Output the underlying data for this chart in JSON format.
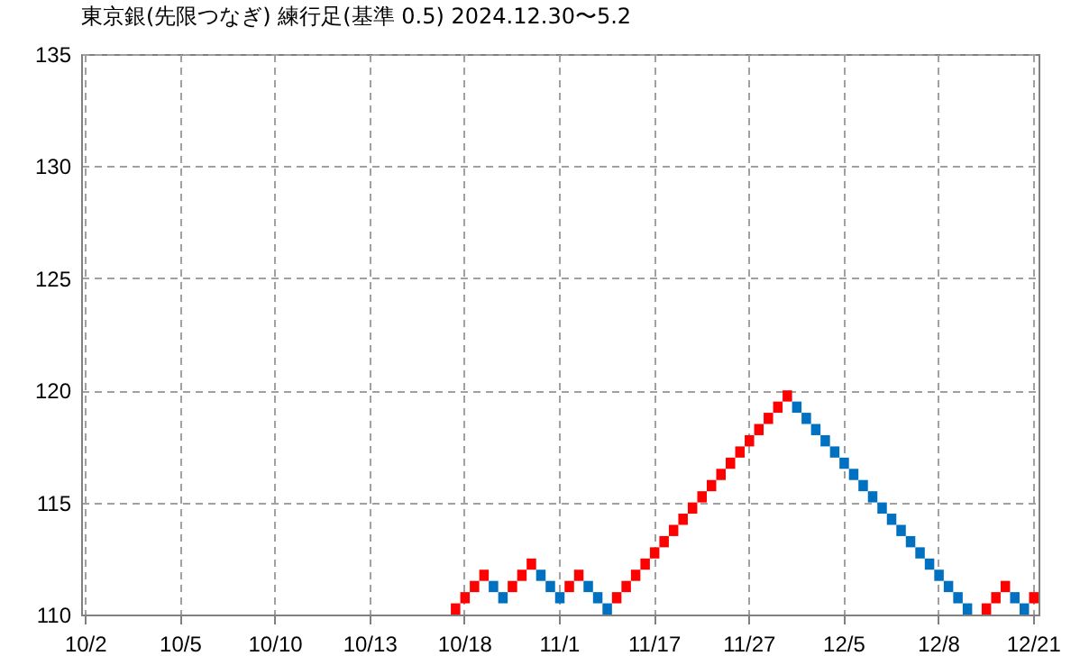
{
  "chart_data": {
    "type": "bar",
    "title": "東京銀(先限つなぎ)  練行足(基準 0.5)  2024.12.30〜5.2",
    "categories": [
      "10/2",
      null,
      null,
      null,
      null,
      null,
      null,
      null,
      null,
      null,
      "10/5",
      null,
      null,
      null,
      null,
      null,
      null,
      null,
      null,
      null,
      "10/10",
      null,
      null,
      null,
      null,
      null,
      null,
      null,
      null,
      null,
      "10/13",
      null,
      null,
      null,
      null,
      null,
      null,
      null,
      null,
      null,
      "10/18",
      null,
      null,
      null,
      null,
      null,
      null,
      null,
      null,
      null,
      "11/1",
      null,
      null,
      null,
      null,
      null,
      null,
      null,
      null,
      null,
      "11/17",
      null,
      null,
      null,
      null,
      null,
      null,
      null,
      null,
      null,
      "11/27",
      null,
      null,
      null,
      null,
      null,
      null,
      null,
      null,
      null,
      "12/5",
      null,
      null,
      null,
      null,
      null,
      null,
      null,
      null,
      null,
      "12/8",
      null,
      null,
      null,
      null,
      null,
      null,
      null,
      null,
      null,
      "12/21"
    ],
    "series": [
      {
        "color": "#ff0000",
        "base": [
          null,
          null,
          null,
          null,
          null,
          null,
          null,
          null,
          null,
          null,
          null,
          null,
          null,
          null,
          null,
          null,
          null,
          null,
          null,
          null,
          null,
          null,
          null,
          null,
          null,
          null,
          null,
          null,
          null,
          null,
          null,
          null,
          null,
          null,
          null,
          null,
          null,
          null,
          null,
          110,
          110.5,
          111,
          111.5,
          null,
          null,
          111,
          111.5,
          112,
          null,
          null,
          null,
          111,
          111.5,
          null,
          null,
          null,
          110.5,
          111,
          111.5,
          112,
          112.5,
          113,
          113.5,
          114,
          114.5,
          115,
          115.5,
          116,
          116.5,
          117,
          117.5,
          118,
          118.5,
          119,
          119.5,
          null,
          null,
          null,
          null,
          null,
          null,
          null,
          null,
          null,
          null,
          null,
          null,
          null,
          null,
          null,
          null,
          null,
          null,
          null,
          null,
          110,
          110.5,
          111,
          null,
          null,
          110.5
        ],
        "values": [
          null,
          null,
          null,
          null,
          null,
          null,
          null,
          null,
          null,
          null,
          null,
          null,
          null,
          null,
          null,
          null,
          null,
          null,
          null,
          null,
          null,
          null,
          null,
          null,
          null,
          null,
          null,
          null,
          null,
          null,
          null,
          null,
          null,
          null,
          null,
          null,
          null,
          null,
          null,
          0.5,
          0.5,
          0.5,
          0.5,
          null,
          null,
          0.5,
          0.5,
          0.5,
          null,
          null,
          null,
          0.5,
          0.5,
          null,
          null,
          null,
          0.5,
          0.5,
          0.5,
          0.5,
          0.5,
          0.5,
          0.5,
          0.5,
          0.5,
          0.5,
          0.5,
          0.5,
          0.5,
          0.5,
          0.5,
          0.5,
          0.5,
          0.5,
          0.5,
          null,
          null,
          null,
          null,
          null,
          null,
          null,
          null,
          null,
          null,
          null,
          null,
          null,
          null,
          null,
          null,
          null,
          null,
          null,
          null,
          0.5,
          0.5,
          0.5,
          null,
          null,
          0.5
        ]
      },
      {
        "color": "#0070c0",
        "base": [
          null,
          null,
          null,
          null,
          null,
          null,
          null,
          null,
          null,
          null,
          null,
          null,
          null,
          null,
          null,
          null,
          null,
          null,
          null,
          null,
          null,
          null,
          null,
          null,
          null,
          null,
          null,
          null,
          null,
          null,
          null,
          null,
          null,
          null,
          null,
          null,
          null,
          null,
          null,
          null,
          null,
          null,
          null,
          111,
          110.5,
          null,
          null,
          null,
          111.5,
          111,
          110.5,
          null,
          null,
          111,
          110.5,
          110,
          null,
          null,
          null,
          null,
          null,
          null,
          null,
          null,
          null,
          null,
          null,
          null,
          null,
          null,
          null,
          null,
          null,
          null,
          null,
          119,
          118.5,
          118,
          117.5,
          117,
          116.5,
          116,
          115.5,
          115,
          114.5,
          114,
          113.5,
          113,
          112.5,
          112,
          111.5,
          111,
          110.5,
          110,
          null,
          null,
          null,
          null,
          110.5,
          110,
          null
        ],
        "values": [
          null,
          null,
          null,
          null,
          null,
          null,
          null,
          null,
          null,
          null,
          null,
          null,
          null,
          null,
          null,
          null,
          null,
          null,
          null,
          null,
          null,
          null,
          null,
          null,
          null,
          null,
          null,
          null,
          null,
          null,
          null,
          null,
          null,
          null,
          null,
          null,
          null,
          null,
          null,
          null,
          null,
          null,
          null,
          0.5,
          0.5,
          null,
          null,
          null,
          0.5,
          0.5,
          0.5,
          null,
          null,
          0.5,
          0.5,
          0.5,
          null,
          null,
          null,
          null,
          null,
          null,
          null,
          null,
          null,
          null,
          null,
          null,
          null,
          null,
          null,
          null,
          null,
          null,
          null,
          0.5,
          0.5,
          0.5,
          0.5,
          0.5,
          0.5,
          0.5,
          0.5,
          0.5,
          0.5,
          0.5,
          0.5,
          0.5,
          0.5,
          0.5,
          0.5,
          0.5,
          0.5,
          0.5,
          null,
          null,
          null,
          null,
          0.5,
          0.5,
          null
        ]
      }
    ],
    "ylim": [
      110,
      135
    ],
    "yticks": [
      110,
      115,
      120,
      125,
      130,
      135
    ],
    "grid": true,
    "legend": false
  }
}
